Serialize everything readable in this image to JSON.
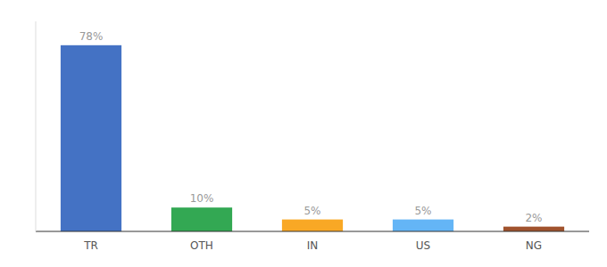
{
  "chart_data": {
    "type": "bar",
    "categories": [
      "TR",
      "OTH",
      "IN",
      "US",
      "NG"
    ],
    "values": [
      78,
      10,
      5,
      5,
      2
    ],
    "value_labels": [
      "78%",
      "10%",
      "5%",
      "5%",
      "2%"
    ],
    "colors": [
      "#4472c4",
      "#33a853",
      "#f9a825",
      "#64b5f6",
      "#a0522d"
    ],
    "ylim": [
      0,
      88
    ],
    "data_labels": true,
    "tick_labels": "x",
    "grid": false
  }
}
